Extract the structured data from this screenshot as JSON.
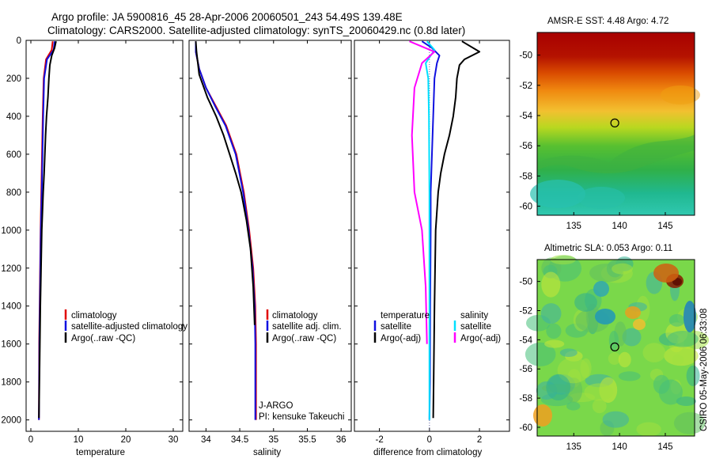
{
  "figure": {
    "title_line1": "Argo profile: JA 5900816_45 28-Apr-2006 20060501_243 54.49S 139.48E",
    "title_line2": "Climatology: CARS2000. Satellite-adjusted climatology: synTS_20060429.nc (0.8d later)",
    "side_credit": "CSIRO 05-May-2006 06:33:08"
  },
  "colors": {
    "climatology": "#e00000",
    "satellite": "#1010e0",
    "argo": "#000000",
    "sal_satellite": "#00e0ff",
    "sal_argo": "#ff00ff"
  },
  "chart_data": [
    {
      "id": "temperature",
      "type": "line",
      "xlabel": "temperature",
      "ylabel": "",
      "xlim": [
        -1,
        32
      ],
      "ylim": [
        0,
        2060
      ],
      "y_reversed": true,
      "xticks": [
        0,
        10,
        20,
        30
      ],
      "xtick_labels": [
        "0",
        "10",
        "20",
        "30"
      ],
      "yticks": [
        0,
        200,
        400,
        600,
        800,
        1000,
        1200,
        1400,
        1600,
        1800,
        2000
      ],
      "ytick_labels": [
        "0",
        "200",
        "400",
        "600",
        "800",
        "1000",
        "1200",
        "1400",
        "1600",
        "1800",
        "2000"
      ],
      "legend": {
        "placement": "right-middle",
        "entries": [
          "climatology",
          "satellite-adjusted climatology",
          "Argo(..raw -QC)"
        ]
      },
      "series": [
        {
          "name": "climatology",
          "color": "#e00000",
          "x": [
            4.6,
            4.4,
            3.2,
            2.7,
            2.5,
            2.35,
            2.2,
            2.05,
            1.95,
            1.85,
            1.75,
            1.7
          ],
          "y": [
            5,
            50,
            100,
            200,
            400,
            600,
            800,
            1000,
            1200,
            1400,
            1600,
            2000
          ]
        },
        {
          "name": "satellite-adjusted climatology",
          "color": "#1010e0",
          "x": [
            5.0,
            4.8,
            3.4,
            2.8,
            2.6,
            2.45,
            2.3,
            2.1,
            2.0,
            1.9,
            1.8,
            1.7
          ],
          "y": [
            5,
            50,
            100,
            200,
            400,
            600,
            800,
            1000,
            1200,
            1400,
            1600,
            2000
          ]
        },
        {
          "name": "Argo(..raw -QC)",
          "color": "#000000",
          "x": [
            5.3,
            5.0,
            4.4,
            4.0,
            3.8,
            3.6,
            3.3,
            3.1,
            2.95,
            2.8,
            2.6,
            2.45,
            2.3,
            2.15,
            2.0,
            1.9,
            1.8,
            1.7
          ],
          "y": [
            5,
            40,
            80,
            130,
            200,
            300,
            400,
            500,
            600,
            700,
            800,
            900,
            1000,
            1200,
            1400,
            1600,
            1800,
            1990
          ]
        }
      ]
    },
    {
      "id": "salinity",
      "type": "line",
      "xlabel": "salinity",
      "ylabel": "",
      "xlim": [
        33.75,
        36.15
      ],
      "ylim": [
        0,
        2060
      ],
      "y_reversed": true,
      "xticks": [
        34,
        34.5,
        35,
        35.5,
        36
      ],
      "xtick_labels": [
        "34",
        "34.5",
        "35",
        "35.5",
        "36"
      ],
      "legend": {
        "placement": "right-middle",
        "entries": [
          "climatology",
          "satellite adj. clim.",
          "Argo(..raw -QC)"
        ]
      },
      "annotations": [
        "J-ARGO",
        "PI: kensuke Takeuchi"
      ],
      "series": [
        {
          "name": "climatology",
          "color": "#e00000",
          "x": [
            33.85,
            33.85,
            33.9,
            34.0,
            34.15,
            34.3,
            34.45,
            34.56,
            34.64,
            34.7,
            34.73,
            34.74,
            34.74
          ],
          "y": [
            5,
            60,
            150,
            250,
            350,
            450,
            600,
            800,
            1000,
            1200,
            1400,
            1600,
            2000
          ]
        },
        {
          "name": "satellite adj. clim.",
          "color": "#1010e0",
          "x": [
            33.85,
            33.85,
            33.9,
            34.0,
            34.14,
            34.29,
            34.44,
            34.55,
            34.63,
            34.69,
            34.72,
            34.73,
            34.73
          ],
          "y": [
            5,
            60,
            150,
            250,
            350,
            450,
            600,
            800,
            1000,
            1200,
            1400,
            1600,
            2000
          ]
        },
        {
          "name": "Argo(..raw -QC)",
          "color": "#000000",
          "x": [
            33.85,
            33.86,
            33.9,
            34.02,
            34.15,
            34.26,
            34.35,
            34.44,
            34.52,
            34.6,
            34.66,
            34.7,
            34.72
          ],
          "y": [
            5,
            60,
            180,
            300,
            400,
            500,
            600,
            700,
            800,
            950,
            1100,
            1300,
            1500
          ]
        }
      ]
    },
    {
      "id": "difference",
      "type": "line",
      "xlabel": "difference from climatology",
      "ylabel": "",
      "xlim": [
        -3,
        3.2
      ],
      "ylim": [
        0,
        2060
      ],
      "y_reversed": true,
      "xticks": [
        -2,
        0,
        2
      ],
      "xtick_labels": [
        "-2",
        "0",
        "2"
      ],
      "legend": {
        "placement": "right-middle",
        "headers": [
          "temperature",
          "salinity"
        ],
        "entries": [
          "satellite",
          "Argo(-adj)",
          "satellite",
          "Argo(-adj)"
        ]
      },
      "series": [
        {
          "name": "temperature satellite",
          "color": "#1010e0",
          "x": [
            -0.3,
            0.1,
            0.4,
            0.3,
            0.2,
            0.15,
            0.1,
            0.05,
            0.05,
            0.03,
            0.02,
            0.0
          ],
          "y": [
            5,
            40,
            80,
            120,
            200,
            400,
            600,
            800,
            1000,
            1400,
            1800,
            2000
          ]
        },
        {
          "name": "temperature Argo(-adj)",
          "color": "#000000",
          "x": [
            1.3,
            2.0,
            1.4,
            1.2,
            1.1,
            1.05,
            0.95,
            0.8,
            0.6,
            0.45,
            0.35,
            0.25,
            0.2,
            0.15
          ],
          "y": [
            5,
            60,
            100,
            130,
            200,
            300,
            400,
            500,
            600,
            700,
            800,
            1000,
            1400,
            1990
          ]
        },
        {
          "name": "salinity satellite",
          "color": "#00e0ff",
          "x": [
            -0.1,
            0.2,
            -0.15,
            -0.05,
            -0.02,
            0.0,
            0.0,
            0.0
          ],
          "y": [
            5,
            50,
            120,
            200,
            400,
            800,
            1400,
            2000
          ]
        },
        {
          "name": "salinity Argo(-adj)",
          "color": "#ff00ff",
          "x": [
            -0.8,
            0.2,
            -0.3,
            -0.6,
            -0.7,
            -0.6,
            -0.3,
            -0.15,
            -0.1
          ],
          "y": [
            5,
            60,
            120,
            250,
            500,
            800,
            1000,
            1300,
            1600
          ]
        }
      ]
    },
    {
      "id": "sst_map",
      "type": "heatmap",
      "title": "AMSR-E SST: 4.48 Argo: 4.72",
      "xlim": [
        131,
        148.2
      ],
      "ylim": [
        -60.6,
        -48.5
      ],
      "xticks": [
        135,
        140,
        145
      ],
      "xtick_labels": [
        "135",
        "140",
        "145"
      ],
      "yticks": [
        -50,
        -52,
        -54,
        -56,
        -58,
        -60
      ],
      "ytick_labels": [
        "-50",
        "-52",
        "-54",
        "-56",
        "-58",
        "-60"
      ],
      "marker": {
        "lon": 139.48,
        "lat": -54.49
      }
    },
    {
      "id": "sla_map",
      "type": "heatmap",
      "title": "Altimetric SLA: 0.053 Argo: 0.11",
      "xlim": [
        131,
        148.2
      ],
      "ylim": [
        -60.6,
        -48.5
      ],
      "xticks": [
        135,
        140,
        145
      ],
      "xtick_labels": [
        "135",
        "140",
        "145"
      ],
      "yticks": [
        -50,
        -52,
        -54,
        -56,
        -58,
        -60
      ],
      "ytick_labels": [
        "-50",
        "-52",
        "-54",
        "-56",
        "-58",
        "-60"
      ],
      "marker": {
        "lon": 139.48,
        "lat": -54.49
      }
    }
  ]
}
